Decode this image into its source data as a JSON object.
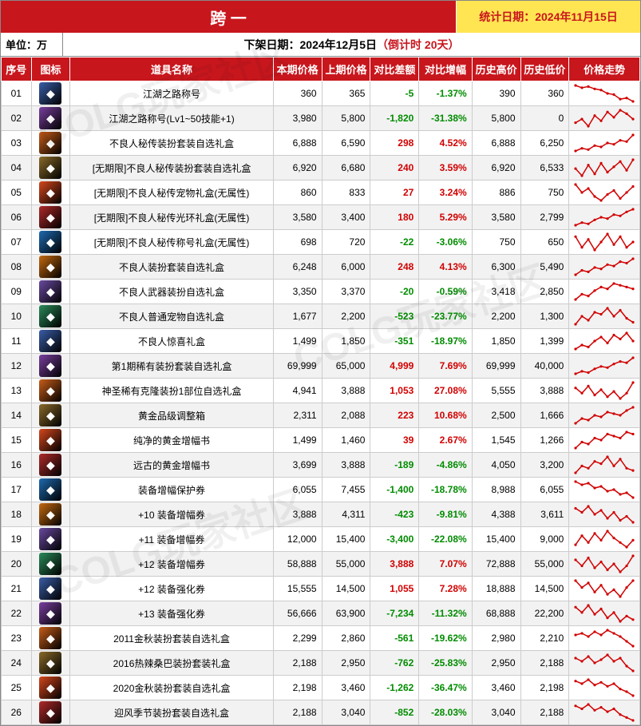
{
  "header": {
    "title": "跨 一",
    "stat_label": "统计日期：",
    "stat_date": "2024年11月15日",
    "unit_label": "单位：万",
    "offshelf_prefix": "下架日期：",
    "offshelf_date": "2024年12月5日",
    "countdown_prefix": "（倒计时 ",
    "countdown_days": "20天",
    "countdown_suffix": "）"
  },
  "columns": [
    "序号",
    "图标",
    "道具名称",
    "本期价格",
    "上期价格",
    "对比差额",
    "对比增幅",
    "历史高价",
    "历史低价",
    "价格走势"
  ],
  "colors": {
    "header_bg": "#c8161d",
    "header_fg": "#ffffff",
    "accent_bg": "#ffe552",
    "accent_fg": "#c8161d",
    "row_alt": "#f2f2f2",
    "pos": "#d10000",
    "neg": "#008c00",
    "spark": "#d10000",
    "border": "#cccccc"
  },
  "icon_palette": [
    "#3a5ea8",
    "#7a3fa0",
    "#c85d1a",
    "#8a6a2a",
    "#d6471d",
    "#b02a2a",
    "#1e6ab0",
    "#c46a10",
    "#6a4aa0",
    "#2a8a5a"
  ],
  "rows": [
    {
      "seq": "01",
      "name": "江湖之路称号",
      "cur": 360,
      "prev": 365,
      "diff": -5,
      "pct": "-1.37%",
      "hi": 390,
      "lo": 360,
      "spark": [
        20,
        18,
        19,
        17,
        16,
        13,
        12,
        8,
        9,
        6
      ]
    },
    {
      "seq": "02",
      "name": "江湖之路称号(Lv1~50技能+1)",
      "cur": 3980,
      "prev": 5800,
      "diff": -1820,
      "pct": "-31.38%",
      "hi": 5800,
      "lo": 0,
      "spark": [
        8,
        10,
        6,
        12,
        9,
        14,
        11,
        15,
        13,
        10
      ]
    },
    {
      "seq": "03",
      "name": "不良人秘传装扮套装自选礼盒",
      "cur": 6888,
      "prev": 6590,
      "diff": 298,
      "pct": "4.52%",
      "hi": 6888,
      "lo": 6250,
      "spark": [
        6,
        8,
        7,
        10,
        9,
        12,
        11,
        14,
        13,
        18
      ]
    },
    {
      "seq": "04",
      "name": "[无期限]不良人秘传装扮套装自选礼盒",
      "cur": 6920,
      "prev": 6680,
      "diff": 240,
      "pct": "3.59%",
      "hi": 6920,
      "lo": 6533,
      "spark": [
        12,
        8,
        14,
        9,
        15,
        10,
        13,
        16,
        11,
        17
      ]
    },
    {
      "seq": "05",
      "name": "[无期限]不良人秘传宠物礼盒(无属性)",
      "cur": 860,
      "prev": 833,
      "diff": 27,
      "pct": "3.24%",
      "hi": 886,
      "lo": 750,
      "spark": [
        16,
        12,
        14,
        10,
        8,
        11,
        13,
        9,
        12,
        15
      ]
    },
    {
      "seq": "06",
      "name": "[无期限]不良人秘传光环礼盒(无属性)",
      "cur": 3580,
      "prev": 3400,
      "diff": 180,
      "pct": "5.29%",
      "hi": 3580,
      "lo": 2799,
      "spark": [
        6,
        8,
        7,
        10,
        12,
        11,
        14,
        13,
        16,
        18
      ]
    },
    {
      "seq": "07",
      "name": "[无期限]不良人秘传称号礼盒(无属性)",
      "cur": 698,
      "prev": 720,
      "diff": -22,
      "pct": "-3.06%",
      "hi": 750,
      "lo": 650,
      "spark": [
        14,
        10,
        13,
        9,
        12,
        15,
        11,
        14,
        10,
        12
      ]
    },
    {
      "seq": "08",
      "name": "不良人装扮套装自选礼盒",
      "cur": 6248,
      "prev": 6000,
      "diff": 248,
      "pct": "4.13%",
      "hi": 6300,
      "lo": 5490,
      "spark": [
        6,
        9,
        8,
        11,
        10,
        13,
        12,
        15,
        14,
        17
      ]
    },
    {
      "seq": "09",
      "name": "不良人武器装扮自选礼盒",
      "cur": 3350,
      "prev": 3370,
      "diff": -20,
      "pct": "-0.59%",
      "hi": 3418,
      "lo": 2850,
      "spark": [
        7,
        10,
        9,
        12,
        14,
        13,
        16,
        15,
        14,
        13
      ]
    },
    {
      "seq": "10",
      "name": "不良人普通宠物自选礼盒",
      "cur": 1677,
      "prev": 2200,
      "diff": -523,
      "pct": "-23.77%",
      "hi": 2200,
      "lo": 1300,
      "spark": [
        8,
        12,
        10,
        14,
        13,
        16,
        12,
        15,
        11,
        9
      ]
    },
    {
      "seq": "11",
      "name": "不良人惊喜礼盒",
      "cur": 1499,
      "prev": 1850,
      "diff": -351,
      "pct": "-18.97%",
      "hi": 1850,
      "lo": 1399,
      "spark": [
        7,
        9,
        8,
        11,
        13,
        10,
        14,
        12,
        15,
        11
      ]
    },
    {
      "seq": "12",
      "name": "第1期稀有装扮套装自选礼盒",
      "cur": 69999,
      "prev": 65000,
      "diff": 4999,
      "pct": "7.69%",
      "hi": 69999,
      "lo": 40000,
      "spark": [
        5,
        7,
        6,
        9,
        11,
        10,
        13,
        15,
        14,
        18
      ]
    },
    {
      "seq": "13",
      "name": "神圣稀有克隆装扮1部位自选礼盒",
      "cur": 4941,
      "prev": 3888,
      "diff": 1053,
      "pct": "27.08%",
      "hi": 5555,
      "lo": 3888,
      "spark": [
        14,
        11,
        15,
        10,
        13,
        9,
        12,
        8,
        11,
        17
      ]
    },
    {
      "seq": "14",
      "name": "黄金品级调整箱",
      "cur": 2311,
      "prev": 2088,
      "diff": 223,
      "pct": "10.68%",
      "hi": 2500,
      "lo": 1666,
      "spark": [
        7,
        10,
        9,
        12,
        11,
        14,
        13,
        12,
        15,
        17
      ]
    },
    {
      "seq": "15",
      "name": "纯净的黄金增幅书",
      "cur": 1499,
      "prev": 1460,
      "diff": 39,
      "pct": "2.67%",
      "hi": 1545,
      "lo": 1266,
      "spark": [
        8,
        11,
        10,
        13,
        12,
        15,
        14,
        13,
        16,
        15
      ]
    },
    {
      "seq": "16",
      "name": "远古的黄金增幅书",
      "cur": 3699,
      "prev": 3888,
      "diff": -189,
      "pct": "-4.86%",
      "hi": 4050,
      "lo": 3200,
      "spark": [
        9,
        12,
        11,
        14,
        13,
        16,
        12,
        15,
        11,
        10
      ]
    },
    {
      "seq": "17",
      "name": "装备增幅保护券",
      "cur": 6055,
      "prev": 7455,
      "diff": -1400,
      "pct": "-18.78%",
      "hi": 8988,
      "lo": 6055,
      "spark": [
        17,
        15,
        16,
        13,
        14,
        11,
        12,
        9,
        10,
        7
      ]
    },
    {
      "seq": "18",
      "name": "+10 装备增幅券",
      "cur": 3888,
      "prev": 4311,
      "diff": -423,
      "pct": "-9.81%",
      "hi": 4388,
      "lo": 3611,
      "spark": [
        15,
        13,
        16,
        12,
        14,
        10,
        13,
        9,
        11,
        8
      ]
    },
    {
      "seq": "19",
      "name": "+11 装备增幅券",
      "cur": 12000,
      "prev": 15400,
      "diff": -3400,
      "pct": "-22.08%",
      "hi": 15400,
      "lo": 9000,
      "spark": [
        9,
        13,
        10,
        14,
        11,
        15,
        12,
        10,
        8,
        11
      ]
    },
    {
      "seq": "20",
      "name": "+12 装备增幅券",
      "cur": 58888,
      "prev": 55000,
      "diff": 3888,
      "pct": "7.07%",
      "hi": 72888,
      "lo": 55000,
      "spark": [
        15,
        12,
        16,
        11,
        14,
        10,
        13,
        9,
        12,
        17
      ]
    },
    {
      "seq": "21",
      "name": "+12 装备强化券",
      "cur": 15555,
      "prev": 14500,
      "diff": 1055,
      "pct": "7.28%",
      "hi": 18888,
      "lo": 14500,
      "spark": [
        16,
        13,
        15,
        11,
        14,
        10,
        12,
        9,
        13,
        16
      ]
    },
    {
      "seq": "22",
      "name": "+13 装备强化券",
      "cur": 56666,
      "prev": 63900,
      "diff": -7234,
      "pct": "-11.32%",
      "hi": 68888,
      "lo": 22200,
      "spark": [
        16,
        13,
        17,
        12,
        15,
        10,
        13,
        8,
        11,
        9
      ]
    },
    {
      "seq": "23",
      "name": "2011金秋装扮套装自选礼盒",
      "cur": 2299,
      "prev": 2860,
      "diff": -561,
      "pct": "-19.62%",
      "hi": 2980,
      "lo": 2210,
      "spark": [
        13,
        14,
        12,
        15,
        13,
        16,
        14,
        12,
        9,
        6
      ]
    },
    {
      "seq": "24",
      "name": "2016热辣桑巴装扮套装礼盒",
      "cur": 2188,
      "prev": 2950,
      "diff": -762,
      "pct": "-25.83%",
      "hi": 2950,
      "lo": 2188,
      "spark": [
        14,
        12,
        15,
        11,
        13,
        16,
        12,
        14,
        9,
        6
      ]
    },
    {
      "seq": "25",
      "name": "2020金秋装扮套装自选礼盒",
      "cur": 2198,
      "prev": 3460,
      "diff": -1262,
      "pct": "-36.47%",
      "hi": 3460,
      "lo": 2198,
      "spark": [
        16,
        14,
        17,
        13,
        15,
        12,
        14,
        10,
        8,
        5
      ]
    },
    {
      "seq": "26",
      "name": "迎风季节装扮套装自选礼盒",
      "cur": 2188,
      "prev": 3040,
      "diff": -852,
      "pct": "-28.03%",
      "hi": 3040,
      "lo": 2188,
      "spark": [
        15,
        13,
        16,
        12,
        14,
        11,
        13,
        9,
        7,
        5
      ]
    }
  ],
  "watermark": "COLG玩家社区"
}
